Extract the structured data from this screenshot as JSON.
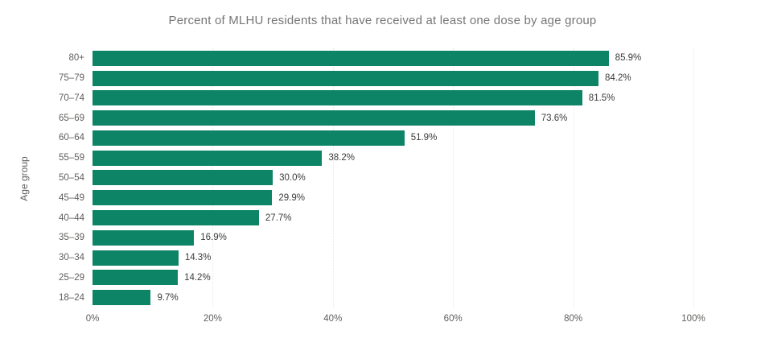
{
  "chart_data": {
    "type": "bar",
    "orientation": "horizontal",
    "title": "Percent of MLHU residents that have received at least one dose by age group",
    "xlabel": "",
    "ylabel": "Age group",
    "categories": [
      "80+",
      "75–79",
      "70–74",
      "65–69",
      "60–64",
      "55–59",
      "50–54",
      "45–49",
      "40–44",
      "35–39",
      "30–34",
      "25–29",
      "18–24"
    ],
    "values": [
      85.9,
      84.2,
      81.5,
      73.6,
      51.9,
      38.2,
      30.0,
      29.9,
      27.7,
      16.9,
      14.3,
      14.2,
      9.7
    ],
    "value_labels": [
      "85.9%",
      "84.2%",
      "81.5%",
      "73.6%",
      "51.9%",
      "38.2%",
      "30.0%",
      "29.9%",
      "27.7%",
      "16.9%",
      "14.3%",
      "14.2%",
      "9.7%"
    ],
    "x_ticks": [
      "0%",
      "20%",
      "40%",
      "60%",
      "80%",
      "100%"
    ],
    "x_tick_values": [
      0,
      20,
      40,
      60,
      80,
      100
    ],
    "xlim": [
      0,
      100
    ],
    "grid": "vertical-dotted",
    "legend": "none",
    "colors": {
      "bar": "#0d8466",
      "title": "#767676",
      "axis_labels": "#605e5c",
      "value_labels": "#3b3b3b",
      "gridline": "#e7e7e7",
      "background": "#ffffff"
    }
  }
}
